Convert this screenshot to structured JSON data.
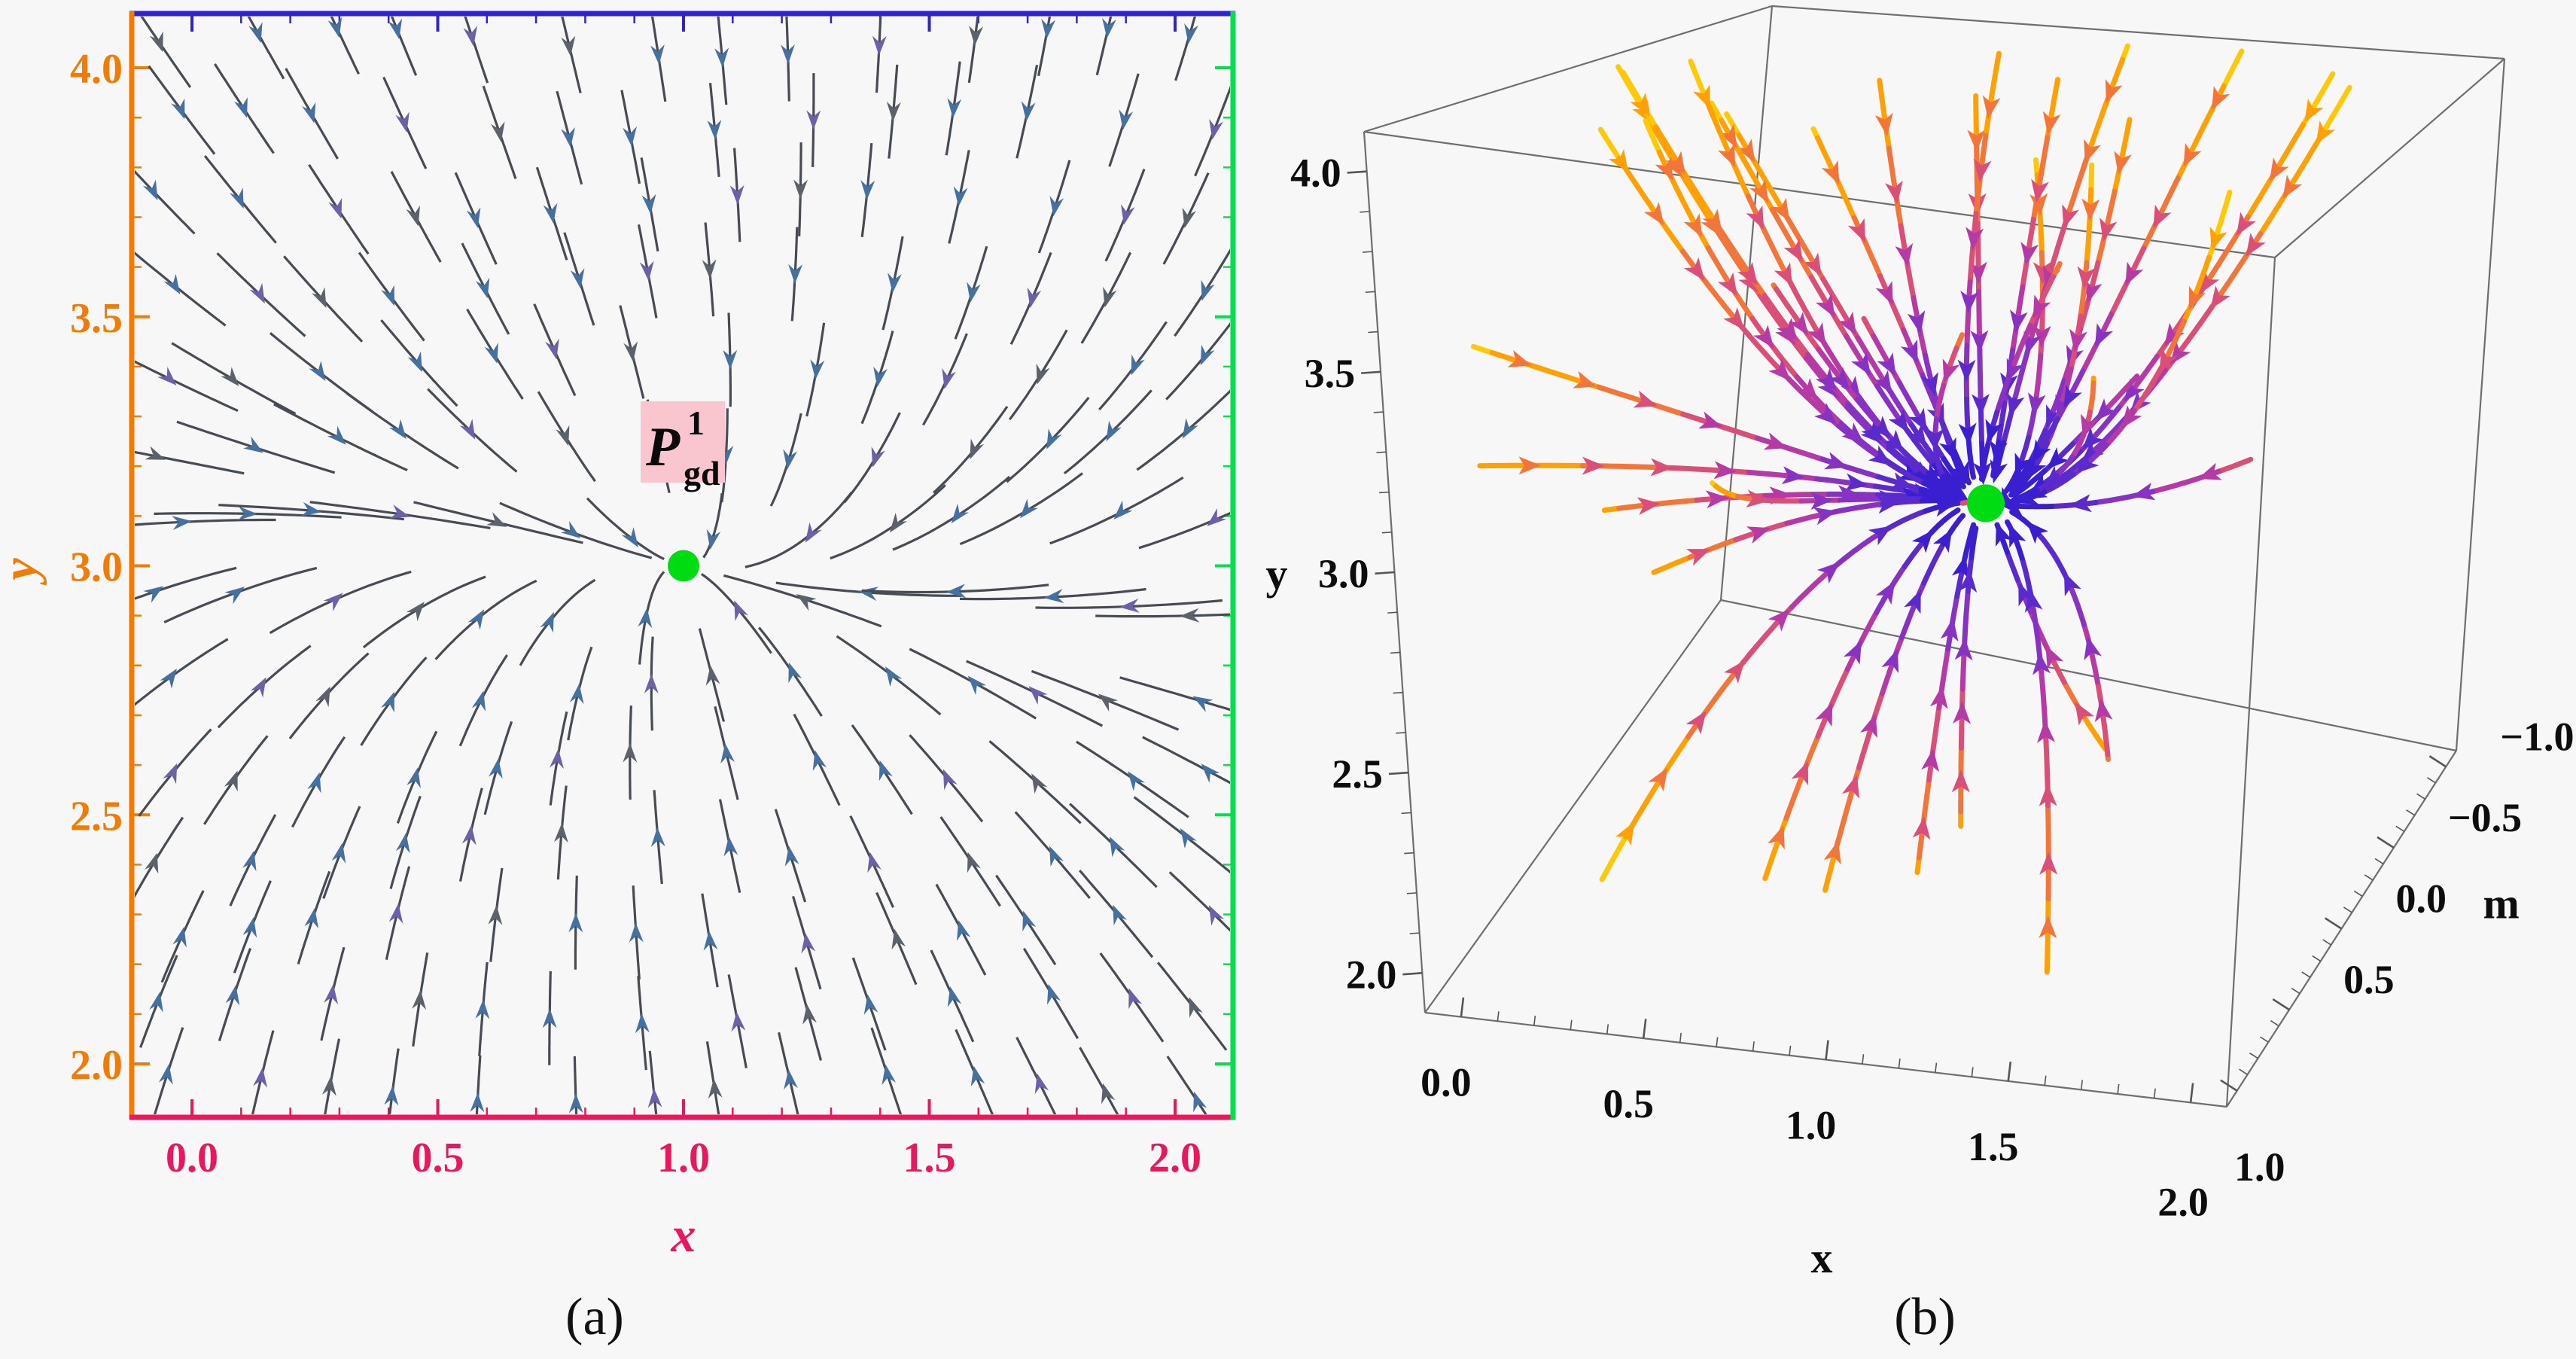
{
  "figure": {
    "background": "#f7f7f7",
    "description": "Two-panel phase-space stream plot figure: (a) 2D stream plot with attractor point, (b) 3D stream plot with attractor point"
  },
  "captions": {
    "a": "(a)",
    "b": "(b)"
  },
  "panel_a": {
    "x_label": "x",
    "y_label": "y",
    "x_tick_labels": [
      "0.0",
      "0.5",
      "1.0",
      "1.5",
      "2.0"
    ],
    "y_tick_labels": [
      "2.0",
      "2.5",
      "3.0",
      "3.5",
      "4.0"
    ],
    "fixed_point_label": {
      "base": "P",
      "sup": "1",
      "sub": "gd"
    },
    "colors": {
      "frame_top": "#2f23cf",
      "frame_left": "#f07c05",
      "frame_bottom": "#ea175c",
      "frame_right": "#02e04c",
      "x_tick_text": "#ea175c",
      "y_tick_text": "#f07c05",
      "stream_line": "#474c54",
      "arrowheads": [
        "#45709f",
        "#45709f",
        "#6a61a8",
        "#45709f",
        "#5b626b"
      ],
      "fixed_point": "#00dc12",
      "label_background": "#f9c6d0"
    }
  },
  "panel_b": {
    "x_label": "x",
    "y_label": "y",
    "m_label": "m",
    "x_tick_labels": [
      "0.0",
      "0.5",
      "1.0",
      "1.5",
      "2.0"
    ],
    "y_tick_labels": [
      "2.0",
      "2.5",
      "3.0",
      "3.5",
      "4.0"
    ],
    "m_tick_labels": [
      "−1.0",
      "−0.5",
      "0.0",
      "0.5",
      "1.0"
    ],
    "colors": {
      "box_edge": "#6e6e6e",
      "label_text": "#0d0d0d",
      "fixed_point": "#00dc12",
      "stream_ramp_inner_to_outer": [
        "#3a1fd0",
        "#5b2acd",
        "#8832c4",
        "#b63aa6",
        "#d94f78",
        "#f2763a",
        "#ffa104",
        "#ffc908"
      ]
    }
  },
  "chart_data": [
    {
      "type": "stream-2d",
      "panel": "a",
      "xlabel": "x",
      "ylabel": "y",
      "xlim": [
        0,
        2
      ],
      "ylim": [
        2,
        4
      ],
      "x_ticks": [
        0,
        0.5,
        1,
        1.5,
        2
      ],
      "y_ticks": [
        2,
        2.5,
        3,
        3.5,
        4
      ],
      "minor_tick_step": 0.1,
      "grid": false,
      "fixed_points": [
        {
          "x": 1.0,
          "y": 3.0,
          "label": "P_gd^1",
          "color": "#00dc12",
          "stability": "stable node (attractor)"
        }
      ],
      "field_hint": {
        "vx": "-0.55*(x-1)+0.15*(y-3)",
        "vy": "-0.25*(x-1)-2.3*(y-3)",
        "behavior": "all streamlines converge to the fixed point at (1,3); fast contraction in y, slow in x"
      },
      "frame_colors": {
        "top": "#2f23cf",
        "left": "#f07c05",
        "bottom": "#ea175c",
        "right": "#02e04c"
      }
    },
    {
      "type": "stream-3d",
      "panel": "b",
      "xlabel": "x",
      "ylabel": "y",
      "zlabel": "m",
      "xlim": [
        0,
        2
      ],
      "ylim": [
        2,
        4
      ],
      "mlim": [
        -1,
        1
      ],
      "x_ticks": [
        0,
        0.5,
        1,
        1.5,
        2
      ],
      "y_ticks": [
        2,
        2.5,
        3,
        3.5,
        4
      ],
      "m_ticks": [
        -1,
        -0.5,
        0,
        0.5,
        1
      ],
      "grid": false,
      "fixed_points": [
        {
          "x": 1.0,
          "y": 3.0,
          "m": 0.0,
          "color": "#00dc12",
          "stability": "attractor"
        }
      ],
      "field_hint": {
        "dx": "-1.0*(x-1)",
        "dm": "-2.4*m",
        "dy": "-1.8*(y-3)",
        "behavior": "trajectories converge to green point; color encodes distance: yellow/orange far, purple mid, dark blue near attractor"
      }
    }
  ]
}
